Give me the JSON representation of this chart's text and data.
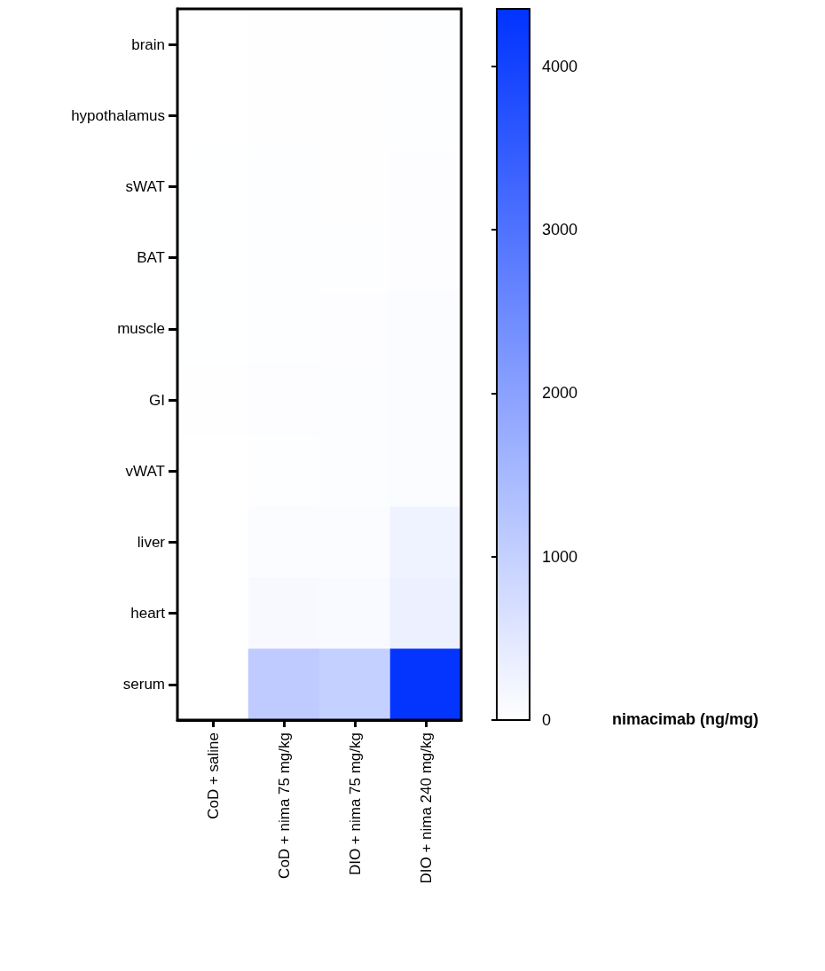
{
  "chart_data": {
    "type": "heatmap",
    "categories": [
      "CoD + saline",
      "CoD + nima 75 mg/kg",
      "DIO + nima 75 mg/kg",
      "DIO + nima 240 mg/kg"
    ],
    "y_categories": [
      "brain",
      "hypothalamus",
      "sWAT",
      "BAT",
      "muscle",
      "GI",
      "vWAT",
      "liver",
      "heart",
      "serum"
    ],
    "cells": [
      [
        0,
        20,
        15,
        30
      ],
      [
        0,
        20,
        15,
        30
      ],
      [
        10,
        30,
        25,
        40
      ],
      [
        10,
        30,
        30,
        40
      ],
      [
        10,
        30,
        40,
        60
      ],
      [
        15,
        40,
        50,
        70
      ],
      [
        0,
        30,
        50,
        70
      ],
      [
        0,
        60,
        70,
        280
      ],
      [
        0,
        120,
        110,
        330
      ],
      [
        0,
        1100,
        1000,
        4300
      ]
    ],
    "color": "#0033ff",
    "clim": [
      0,
      4350
    ],
    "cticks": [
      0,
      1000,
      2000,
      3000,
      4000
    ],
    "clabel": "nimacimab (ng/mg)"
  }
}
